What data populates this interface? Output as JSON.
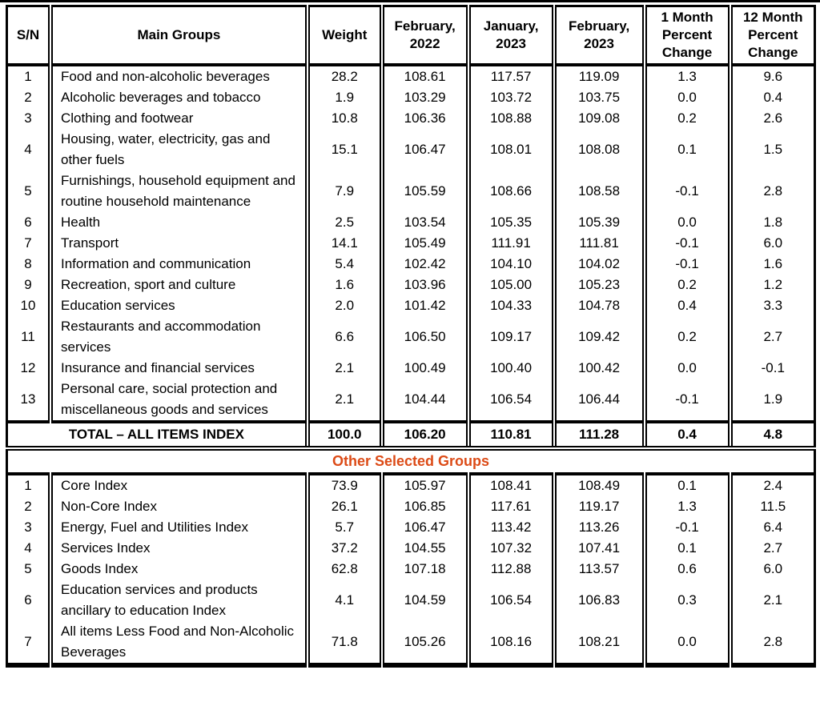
{
  "page": {
    "background": "#ffffff"
  },
  "colors": {
    "border": "#000000",
    "text": "#000000",
    "section_header_text": "#DC4B17"
  },
  "table": {
    "columns": [
      "S/N",
      "Main Groups",
      "Weight",
      "February, 2022",
      "January, 2023",
      "February, 2023",
      "1 Month Percent Change",
      "12 Month Percent Change"
    ],
    "main_rows": [
      [
        "1",
        "Food and non-alcoholic beverages",
        "28.2",
        "108.61",
        "117.57",
        "119.09",
        "1.3",
        "9.6"
      ],
      [
        "2",
        "Alcoholic beverages and tobacco",
        "1.9",
        "103.29",
        "103.72",
        "103.75",
        "0.0",
        "0.4"
      ],
      [
        "3",
        "Clothing and footwear",
        "10.8",
        "106.36",
        "108.88",
        "109.08",
        "0.2",
        "2.6"
      ],
      [
        "4",
        "Housing, water, electricity, gas and other fuels",
        "15.1",
        "106.47",
        "108.01",
        "108.08",
        "0.1",
        "1.5"
      ],
      [
        "5",
        "Furnishings, household equipment and routine household maintenance",
        "7.9",
        "105.59",
        "108.66",
        "108.58",
        "-0.1",
        "2.8"
      ],
      [
        "6",
        "Health",
        "2.5",
        "103.54",
        "105.35",
        "105.39",
        "0.0",
        "1.8"
      ],
      [
        "7",
        "Transport",
        "14.1",
        "105.49",
        "111.91",
        "111.81",
        "-0.1",
        "6.0"
      ],
      [
        "8",
        "Information and communication",
        "5.4",
        "102.42",
        "104.10",
        "104.02",
        "-0.1",
        "1.6"
      ],
      [
        "9",
        "Recreation, sport and culture",
        "1.6",
        "103.96",
        "105.00",
        "105.23",
        "0.2",
        "1.2"
      ],
      [
        "10",
        "Education services",
        "2.0",
        "101.42",
        "104.33",
        "104.78",
        "0.4",
        "3.3"
      ],
      [
        "11",
        "Restaurants and accommodation services",
        "6.6",
        "106.50",
        "109.17",
        "109.42",
        "0.2",
        "2.7"
      ],
      [
        "12",
        "Insurance and financial services",
        "2.1",
        "100.49",
        "100.40",
        "100.42",
        "0.0",
        "-0.1"
      ],
      [
        "13",
        "Personal care, social protection and miscellaneous goods and services",
        "2.1",
        "104.44",
        "106.54",
        "106.44",
        "-0.1",
        "1.9"
      ]
    ],
    "total_row": {
      "label": "TOTAL – ALL ITEMS INDEX",
      "weight": "100.0",
      "feb_2022": "106.20",
      "jan_2023": "110.81",
      "feb_2023": "111.28",
      "change_1m": "0.4",
      "change_12m": "4.8"
    },
    "section_header": "Other Selected Groups",
    "other_rows": [
      [
        "1",
        "Core Index",
        "73.9",
        "105.97",
        "108.41",
        "108.49",
        "0.1",
        "2.4"
      ],
      [
        "2",
        "Non-Core Index",
        "26.1",
        "106.85",
        "117.61",
        "119.17",
        "1.3",
        "11.5"
      ],
      [
        "3",
        "Energy, Fuel and Utilities Index",
        "5.7",
        "106.47",
        "113.42",
        "113.26",
        "-0.1",
        "6.4"
      ],
      [
        "4",
        "Services Index",
        "37.2",
        "104.55",
        "107.32",
        "107.41",
        "0.1",
        "2.7"
      ],
      [
        "5",
        "Goods Index",
        "62.8",
        "107.18",
        "112.88",
        "113.57",
        "0.6",
        "6.0"
      ],
      [
        "6",
        "Education services and products ancillary to education Index",
        "4.1",
        "104.59",
        "106.54",
        "106.83",
        "0.3",
        "2.1"
      ],
      [
        "7",
        "All items Less Food and Non-Alcoholic Beverages",
        "71.8",
        "105.26",
        "108.16",
        "108.21",
        "0.0",
        "2.8"
      ]
    ]
  }
}
